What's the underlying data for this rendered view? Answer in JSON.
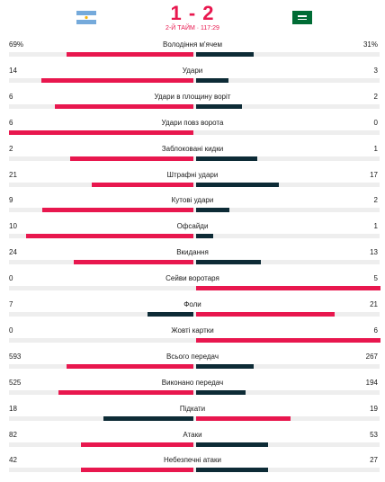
{
  "header": {
    "score": "1 - 2",
    "status": "2-Й ТАЙМ · 117:29"
  },
  "stats": [
    {
      "label": "Володіння м'ячем",
      "home": 69,
      "away": 31,
      "home_label": "69%",
      "away_label": "31%"
    },
    {
      "label": "Удари",
      "home": 14,
      "away": 3
    },
    {
      "label": "Удари в площину воріт",
      "home": 6,
      "away": 2
    },
    {
      "label": "Удари повз ворота",
      "home": 6,
      "away": 0
    },
    {
      "label": "Заблоковані кидки",
      "home": 2,
      "away": 1
    },
    {
      "label": "Штрафні удари",
      "home": 21,
      "away": 17
    },
    {
      "label": "Кутові удари",
      "home": 9,
      "away": 2
    },
    {
      "label": "Офсайди",
      "home": 10,
      "away": 1
    },
    {
      "label": "Вкидання",
      "home": 24,
      "away": 13
    },
    {
      "label": "Сейви воротаря",
      "home": 0,
      "away": 5
    },
    {
      "label": "Фоли",
      "home": 7,
      "away": 21
    },
    {
      "label": "Жовті картки",
      "home": 0,
      "away": 6
    },
    {
      "label": "Всього передач",
      "home": 593,
      "away": 267
    },
    {
      "label": "Виконано передач",
      "home": 525,
      "away": 194
    },
    {
      "label": "Підкати",
      "home": 18,
      "away": 19
    },
    {
      "label": "Атаки",
      "home": 82,
      "away": 53
    },
    {
      "label": "Небезпечні атаки",
      "home": 42,
      "away": 27
    }
  ]
}
